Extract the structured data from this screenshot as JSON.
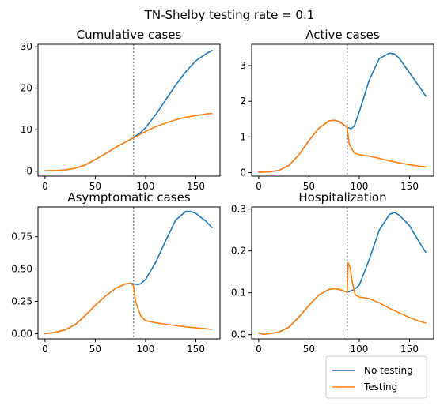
{
  "suptitle": "TN-Shelby testing rate = 0.1",
  "colors": {
    "no_testing": "#1f77b4",
    "testing": "#ff7f0e",
    "vline": "#808080"
  },
  "legend": {
    "placement": "bottom-right",
    "entries": [
      "No testing",
      "Testing"
    ]
  },
  "chart_data": [
    {
      "type": "line",
      "title": "Cumulative cases",
      "xlim": [
        -7,
        174
      ],
      "ylim": [
        -1.2,
        30.6
      ],
      "xticks": [
        0,
        50,
        100,
        150
      ],
      "xtick_labels": [
        "0",
        "50",
        "100",
        "150"
      ],
      "yticks": [
        0,
        10,
        20,
        30
      ],
      "ytick_labels": [
        "0",
        "10",
        "20",
        "30"
      ],
      "vline_x": 88,
      "series": [
        {
          "name": "No testing",
          "x": [
            0,
            10,
            20,
            30,
            40,
            50,
            60,
            70,
            80,
            88,
            95,
            100,
            110,
            120,
            130,
            140,
            150,
            160,
            166
          ],
          "y": [
            0.1,
            0.15,
            0.3,
            0.7,
            1.5,
            2.8,
            4.2,
            5.7,
            7.0,
            8.1,
            9.3,
            10.5,
            13.6,
            17.2,
            20.8,
            24.0,
            26.6,
            28.3,
            29.1
          ]
        },
        {
          "name": "Testing",
          "x": [
            0,
            10,
            20,
            30,
            40,
            50,
            60,
            70,
            80,
            88,
            95,
            100,
            110,
            120,
            130,
            140,
            150,
            160,
            166
          ],
          "y": [
            0.1,
            0.15,
            0.3,
            0.7,
            1.5,
            2.8,
            4.2,
            5.7,
            7.0,
            8.0,
            8.9,
            9.6,
            10.7,
            11.6,
            12.4,
            13.0,
            13.4,
            13.8,
            13.9
          ]
        }
      ]
    },
    {
      "type": "line",
      "title": "Active cases",
      "xlim": [
        -7,
        174
      ],
      "ylim": [
        -0.1,
        3.6
      ],
      "xticks": [
        0,
        50,
        100,
        150
      ],
      "xtick_labels": [
        "0",
        "50",
        "100",
        "150"
      ],
      "yticks": [
        0,
        1,
        2,
        3
      ],
      "ytick_labels": [
        "0",
        "1",
        "2",
        "3"
      ],
      "vline_x": 88,
      "series": [
        {
          "name": "No testing",
          "x": [
            0,
            10,
            20,
            30,
            40,
            50,
            60,
            70,
            75,
            80,
            85,
            88,
            92,
            95,
            100,
            110,
            120,
            130,
            135,
            140,
            150,
            160,
            166
          ],
          "y": [
            0.01,
            0.02,
            0.06,
            0.2,
            0.5,
            0.9,
            1.25,
            1.45,
            1.47,
            1.43,
            1.33,
            1.27,
            1.23,
            1.3,
            1.7,
            2.6,
            3.2,
            3.35,
            3.33,
            3.2,
            2.8,
            2.4,
            2.15
          ]
        },
        {
          "name": "Testing",
          "x": [
            0,
            10,
            20,
            30,
            40,
            50,
            60,
            70,
            75,
            80,
            85,
            88,
            90,
            95,
            100,
            110,
            120,
            130,
            140,
            150,
            160,
            166
          ],
          "y": [
            0.01,
            0.02,
            0.06,
            0.2,
            0.5,
            0.9,
            1.25,
            1.45,
            1.47,
            1.43,
            1.33,
            1.27,
            0.8,
            0.55,
            0.5,
            0.46,
            0.4,
            0.33,
            0.27,
            0.22,
            0.18,
            0.16
          ]
        }
      ]
    },
    {
      "type": "line",
      "title": "Asymptomatic cases",
      "xlim": [
        -7,
        174
      ],
      "ylim": [
        -0.04,
        0.98
      ],
      "xticks": [
        0,
        50,
        100,
        150
      ],
      "xtick_labels": [
        "0",
        "50",
        "100",
        "150"
      ],
      "yticks": [
        0,
        0.25,
        0.5,
        0.75
      ],
      "ytick_labels": [
        "0.00",
        "0.25",
        "0.50",
        "0.75"
      ],
      "vline_x": 88,
      "series": [
        {
          "name": "No testing",
          "x": [
            0,
            10,
            20,
            30,
            40,
            50,
            60,
            70,
            80,
            85,
            88,
            92,
            95,
            100,
            110,
            120,
            130,
            140,
            145,
            150,
            160,
            166
          ],
          "y": [
            0.0,
            0.01,
            0.03,
            0.07,
            0.14,
            0.22,
            0.29,
            0.35,
            0.385,
            0.39,
            0.385,
            0.38,
            0.385,
            0.42,
            0.55,
            0.72,
            0.88,
            0.945,
            0.945,
            0.93,
            0.87,
            0.82
          ]
        },
        {
          "name": "Testing",
          "x": [
            0,
            10,
            20,
            30,
            40,
            50,
            60,
            70,
            80,
            85,
            88,
            90,
            95,
            100,
            110,
            120,
            130,
            140,
            150,
            160,
            166
          ],
          "y": [
            0.0,
            0.01,
            0.03,
            0.07,
            0.14,
            0.22,
            0.29,
            0.35,
            0.385,
            0.39,
            0.37,
            0.25,
            0.14,
            0.1,
            0.085,
            0.073,
            0.063,
            0.053,
            0.045,
            0.038,
            0.033
          ]
        }
      ]
    },
    {
      "type": "line",
      "title": "Hospitalization",
      "xlim": [
        -7,
        174
      ],
      "ylim": [
        -0.01,
        0.305
      ],
      "xticks": [
        0,
        50,
        100,
        150
      ],
      "xtick_labels": [
        "0",
        "50",
        "100",
        "150"
      ],
      "yticks": [
        0,
        0.1,
        0.2,
        0.3
      ],
      "ytick_labels": [
        "0.0",
        "0.1",
        "0.2",
        "0.3"
      ],
      "vline_x": 88,
      "series": [
        {
          "name": "No testing",
          "x": [
            0,
            5,
            10,
            20,
            30,
            40,
            50,
            60,
            70,
            75,
            80,
            85,
            88,
            92,
            95,
            100,
            110,
            120,
            130,
            135,
            140,
            150,
            160,
            166
          ],
          "y": [
            0.004,
            0.001,
            0.002,
            0.006,
            0.018,
            0.042,
            0.07,
            0.095,
            0.108,
            0.11,
            0.108,
            0.104,
            0.101,
            0.105,
            0.108,
            0.118,
            0.18,
            0.25,
            0.287,
            0.292,
            0.285,
            0.26,
            0.22,
            0.197
          ]
        },
        {
          "name": "Testing",
          "x": [
            0,
            5,
            10,
            20,
            30,
            40,
            50,
            60,
            70,
            75,
            80,
            85,
            88,
            89,
            91,
            93,
            96,
            100,
            110,
            120,
            130,
            140,
            150,
            160,
            166
          ],
          "y": [
            0.004,
            0.001,
            0.002,
            0.006,
            0.018,
            0.042,
            0.07,
            0.095,
            0.108,
            0.11,
            0.108,
            0.104,
            0.101,
            0.172,
            0.16,
            0.125,
            0.095,
            0.09,
            0.086,
            0.076,
            0.063,
            0.052,
            0.041,
            0.032,
            0.028
          ]
        }
      ]
    }
  ]
}
